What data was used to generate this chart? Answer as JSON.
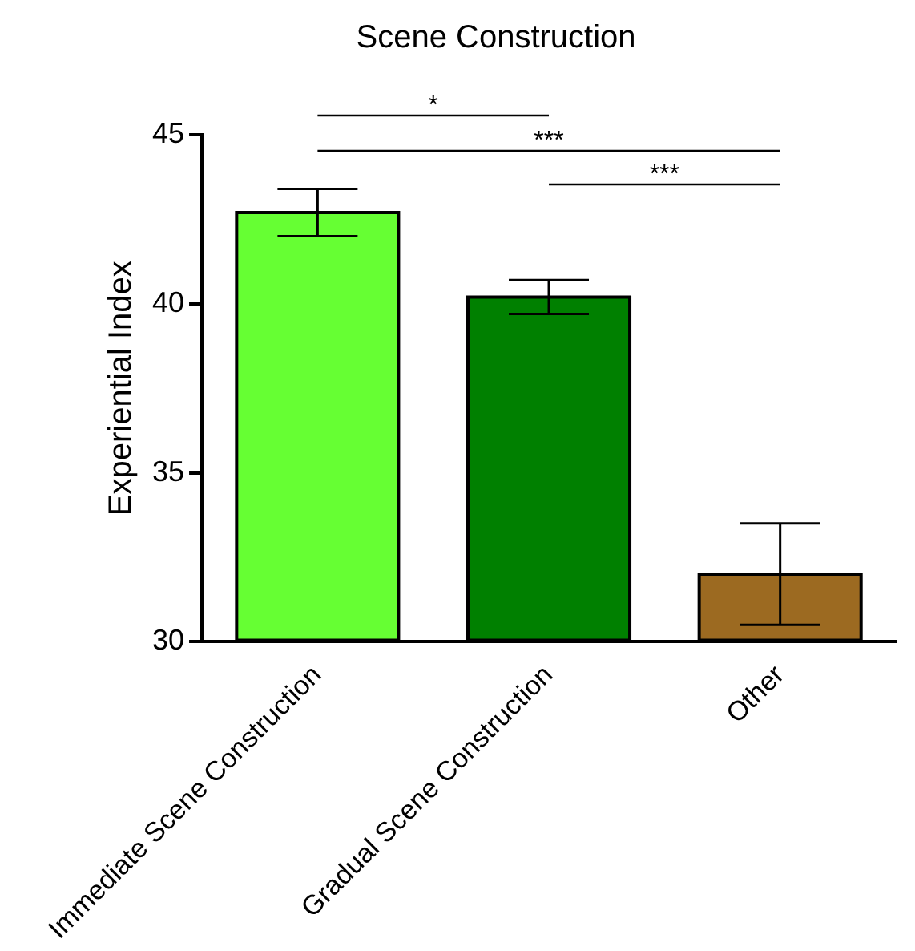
{
  "chart_data": {
    "type": "bar",
    "title": "Scene Construction",
    "ylabel": "Experiential Index",
    "categories": [
      "Immediate Scene Construction",
      "Gradual Scene Construction",
      "Other"
    ],
    "values": [
      42.7,
      40.2,
      32.0
    ],
    "errors": [
      0.7,
      0.5,
      1.5
    ],
    "colors": [
      "#66ff33",
      "#008000",
      "#9c6a21"
    ],
    "ylim": [
      30,
      45
    ],
    "yticks": [
      30,
      35,
      40,
      45
    ],
    "grid": false,
    "legend": false,
    "annotations": [
      "*",
      "***",
      "***"
    ]
  }
}
